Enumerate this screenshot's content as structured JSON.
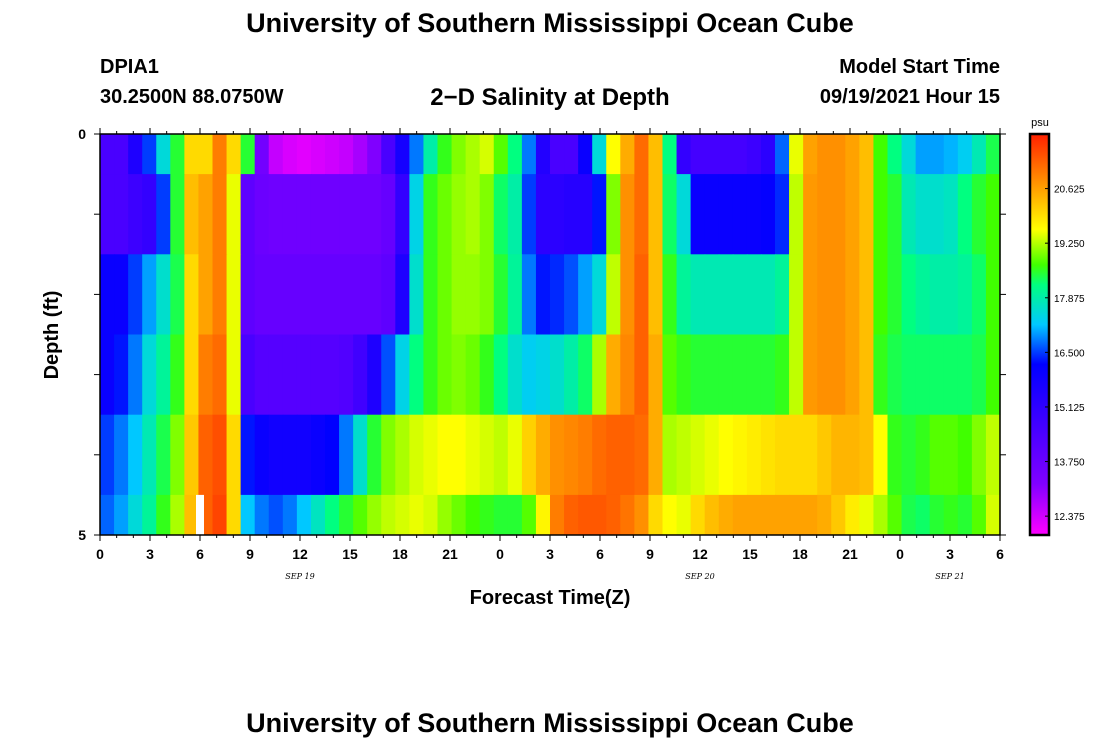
{
  "header": {
    "title": "University of Southern Mississippi Ocean Cube",
    "station": "DPIA1",
    "coords": "30.2500N  88.0750W",
    "plot_title": "2−D Salinity at Depth",
    "model_start_label": "Model Start Time",
    "model_start_value": "09/19/2021 Hour 15"
  },
  "footer": {
    "title": "University of Southern Mississippi Ocean Cube"
  },
  "chart_data": {
    "type": "heatmap",
    "title": "2−D Salinity at Depth",
    "xlabel": "Forecast Time(Z)",
    "ylabel": "Depth (ft)",
    "x_tick_labels": [
      "0",
      "3",
      "6",
      "9",
      "12",
      "15",
      "18",
      "21",
      "0",
      "3",
      "6",
      "9",
      "12",
      "15",
      "18",
      "21",
      "0",
      "3",
      "6"
    ],
    "x_date_labels": [
      {
        "text": "SEP 19",
        "hour_index": 12
      },
      {
        "text": "SEP 20",
        "hour_index": 36
      },
      {
        "text": "SEP 21",
        "hour_index": 51
      }
    ],
    "y_tick_labels": [
      "0",
      "5"
    ],
    "ylim": [
      0,
      5
    ],
    "x_hours": 54,
    "depth_levels": [
      0,
      1,
      2,
      3,
      4,
      5
    ],
    "colorbar": {
      "unit": "psu",
      "range": [
        11.9,
        22.0
      ],
      "tick_labels": [
        "20.625",
        "19.250",
        "17.875",
        "16.500",
        "15.125",
        "13.750",
        "12.375"
      ],
      "tick_values": [
        20.625,
        19.25,
        17.875,
        16.5,
        15.125,
        13.75,
        12.375
      ],
      "colors": [
        "#ff00ff",
        "#8000ff",
        "#0000ff",
        "#00c8ff",
        "#00ff80",
        "#40ff00",
        "#ffff00",
        "#ff9000",
        "#ff2000"
      ],
      "color_stops": [
        11.9,
        13.2,
        16.2,
        17.2,
        18.2,
        18.7,
        19.6,
        20.8,
        22.0
      ]
    },
    "layers": [
      {
        "depth_top": 0,
        "depth_bottom": 0.5,
        "values": [
          14.5,
          14.5,
          15.5,
          16.5,
          17.5,
          18.5,
          20,
          20,
          21,
          20,
          18.5,
          13.5,
          12.5,
          12.3,
          12.2,
          12.3,
          12.4,
          12.5,
          12.8,
          13.2,
          14.5,
          15.7,
          16.8,
          17.9,
          18.6,
          19,
          19.2,
          19.4,
          18.8,
          18.2,
          16.8,
          15.4,
          14.5,
          14.5,
          16,
          17.5,
          19.6,
          20.5,
          21.2,
          20.3,
          18.2,
          15,
          14.6,
          14.6,
          14.6,
          14.6,
          14.8,
          15.2,
          16.7,
          19.5,
          20.6,
          20.8,
          20.8,
          20.6,
          20.3,
          18.7,
          18.2,
          17.5,
          17,
          17,
          17.1,
          17.3,
          17.8,
          18.4
        ]
      },
      {
        "depth_top": 0.5,
        "depth_bottom": 1.5,
        "values": [
          14.5,
          14.5,
          14.8,
          15,
          16.5,
          18.5,
          20.3,
          20.6,
          21,
          19.5,
          14,
          13.7,
          13.6,
          13.6,
          13.6,
          13.6,
          13.6,
          13.6,
          13.6,
          13.6,
          13.8,
          15,
          17.4,
          18.6,
          18.9,
          19.1,
          19.2,
          19,
          18.3,
          17.9,
          16.5,
          15.2,
          15.2,
          15.3,
          15.3,
          16.3,
          19,
          20.8,
          21.2,
          20.3,
          18.3,
          17.5,
          16,
          16,
          16,
          16,
          16,
          16.1,
          16.4,
          19.3,
          20.7,
          20.8,
          20.8,
          20.6,
          20.3,
          18.7,
          18.5,
          17.8,
          17.6,
          17.6,
          17.7,
          18.2,
          18.5,
          18.7
        ]
      },
      {
        "depth_top": 1.5,
        "depth_bottom": 2.5,
        "values": [
          16,
          16,
          16.5,
          17,
          17.6,
          18.4,
          20,
          20.6,
          21,
          19.5,
          14,
          13.8,
          13.8,
          13.8,
          13.8,
          13.8,
          13.8,
          13.8,
          13.8,
          13.8,
          14,
          15.5,
          17.6,
          18.6,
          18.9,
          19.1,
          19.1,
          19,
          18.5,
          18,
          16.8,
          16.3,
          16.4,
          16.6,
          17,
          17.5,
          19.3,
          20.8,
          21.3,
          20.3,
          18.6,
          18,
          17.8,
          17.8,
          17.8,
          17.8,
          17.8,
          17.8,
          18,
          19.3,
          20.7,
          20.8,
          20.8,
          20.6,
          20.3,
          18.7,
          18.5,
          18.2,
          18,
          17.9,
          17.9,
          18,
          18.3,
          18.7
        ]
      },
      {
        "depth_top": 2.5,
        "depth_bottom": 3.5,
        "values": [
          16,
          16.3,
          16.8,
          17.5,
          18,
          18.6,
          20,
          21,
          21.2,
          19.5,
          14.5,
          14.2,
          14.2,
          14.2,
          14.2,
          14.2,
          14.2,
          14.3,
          14.7,
          15.5,
          16.6,
          17.4,
          18.2,
          18.6,
          18.9,
          19,
          18.9,
          18.6,
          18.2,
          17.6,
          17.3,
          17.4,
          17.6,
          17.9,
          18.3,
          19.2,
          20.5,
          20.9,
          21.3,
          20.5,
          18.8,
          18.6,
          18.5,
          18.5,
          18.5,
          18.5,
          18.5,
          18.5,
          18.6,
          19.3,
          20.7,
          20.8,
          20.8,
          20.6,
          20.3,
          18.6,
          18.4,
          18.3,
          18.3,
          18.3,
          18.3,
          18.3,
          18.4,
          18.7
        ]
      },
      {
        "depth_top": 3.5,
        "depth_bottom": 4.5,
        "values": [
          16.5,
          16.8,
          17.2,
          17.8,
          18.4,
          19,
          20.2,
          21.3,
          21.5,
          20,
          16.3,
          16,
          15.8,
          15.8,
          15.8,
          16,
          16.2,
          16.8,
          17.6,
          18.5,
          19,
          19.2,
          19.4,
          19.5,
          19.6,
          19.6,
          19.5,
          19.4,
          19.3,
          19.5,
          20.1,
          20.5,
          20.8,
          20.9,
          21,
          21.2,
          21.3,
          21.3,
          21.2,
          20.5,
          19.2,
          19.3,
          19.4,
          19.5,
          19.6,
          19.7,
          19.8,
          19.9,
          20,
          20,
          20,
          20.2,
          20.4,
          20.4,
          20.3,
          19.6,
          18.6,
          18.5,
          18.6,
          18.8,
          18.8,
          18.7,
          19,
          19.3
        ]
      },
      {
        "depth_top": 4.5,
        "depth_bottom": 5,
        "values": [
          16.7,
          17,
          17.5,
          18,
          18.6,
          19.2,
          20.3,
          21.3,
          21.6,
          20,
          17.2,
          16.8,
          16.6,
          16.8,
          17.2,
          17.7,
          18.2,
          18.5,
          18.8,
          19.1,
          19.3,
          19.4,
          19.5,
          19.4,
          19.1,
          18.9,
          18.7,
          18.6,
          18.5,
          18.5,
          18.8,
          19.7,
          21,
          21.3,
          21.4,
          21.4,
          21.3,
          21.1,
          20.8,
          20,
          19.6,
          19.5,
          20,
          20.3,
          20.5,
          20.6,
          20.6,
          20.6,
          20.6,
          20.6,
          20.6,
          20.5,
          20.2,
          19.8,
          19.5,
          19.2,
          18.8,
          18.4,
          18.3,
          18.5,
          18.6,
          18.5,
          18.8,
          19.4
        ]
      }
    ],
    "missing": [
      {
        "hour": 6,
        "depth_top": 4.5,
        "depth_bottom": 5
      }
    ]
  },
  "colors": {
    "frame": "#000000",
    "background": "#ffffff",
    "colorbar_border": "#ff0000"
  }
}
